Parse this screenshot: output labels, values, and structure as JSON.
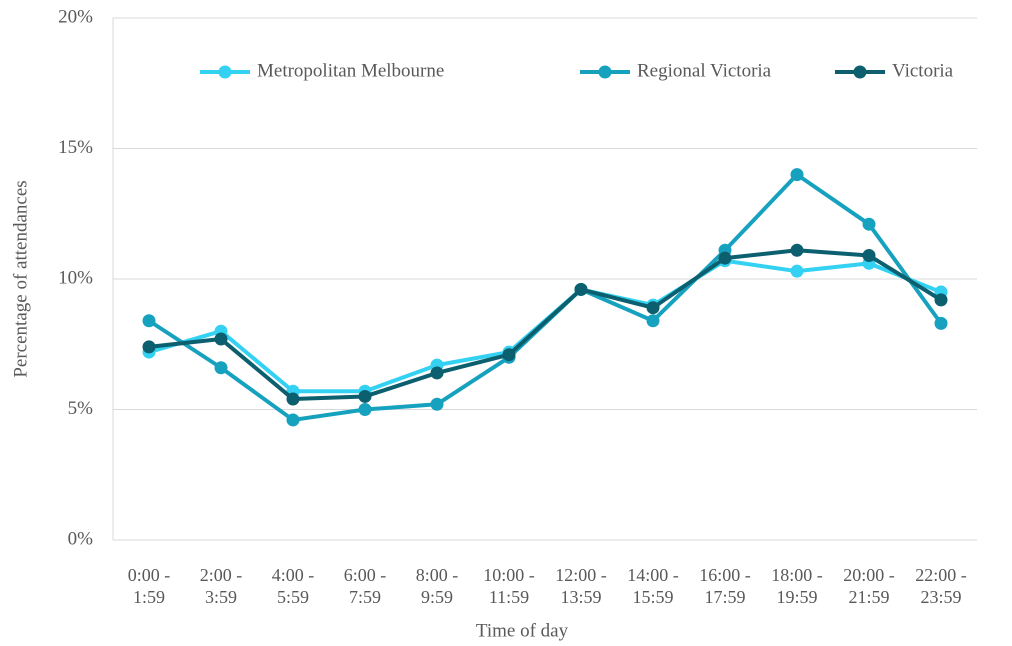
{
  "chart_data": {
    "type": "line",
    "xlabel": "Time of day",
    "ylabel": "Percentage of attendances",
    "categories": [
      "0:00 - 1:59",
      "2:00 - 3:59",
      "4:00 - 5:59",
      "6:00 - 7:59",
      "8:00 - 9:59",
      "10:00 - 11:59",
      "12:00 - 13:59",
      "14:00 - 15:59",
      "16:00 - 17:59",
      "18:00 - 19:59",
      "20:00 - 21:59",
      "22:00 - 23:59"
    ],
    "series": [
      {
        "name": "Metropolitan Melbourne",
        "color": "#33d1f2",
        "values": [
          7.2,
          8.0,
          5.7,
          5.7,
          6.7,
          7.2,
          9.6,
          9.0,
          10.7,
          10.3,
          10.6,
          9.5
        ]
      },
      {
        "name": "Regional Victoria",
        "color": "#16a2bf",
        "values": [
          8.4,
          6.6,
          4.6,
          5.0,
          5.2,
          7.0,
          9.6,
          8.4,
          11.1,
          14.0,
          12.1,
          8.3
        ]
      },
      {
        "name": "Victoria",
        "color": "#0c5f6e",
        "values": [
          7.4,
          7.7,
          5.4,
          5.5,
          6.4,
          7.1,
          9.6,
          8.9,
          10.8,
          11.1,
          10.9,
          9.2
        ]
      }
    ],
    "ylim": [
      0,
      20
    ],
    "yticks": [
      {
        "value": 0,
        "label": "0%"
      },
      {
        "value": 5,
        "label": "5%"
      },
      {
        "value": 10,
        "label": "10%"
      },
      {
        "value": 15,
        "label": "15%"
      },
      {
        "value": 20,
        "label": "20%"
      }
    ],
    "grid": true,
    "legend": "top"
  }
}
